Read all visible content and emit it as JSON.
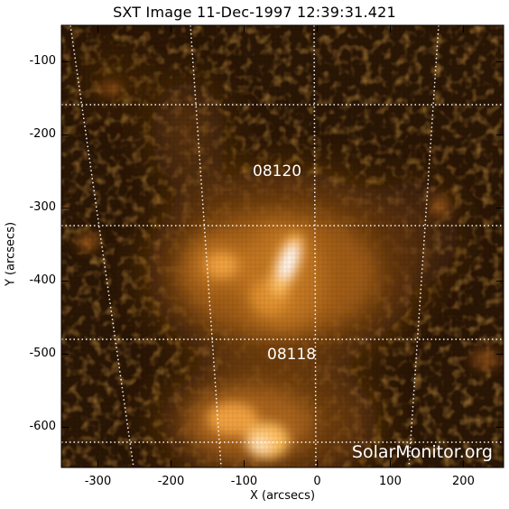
{
  "title": "SXT Image 11-Dec-1997 12:39:31.421",
  "x_axis": {
    "label": "X (arcsecs)",
    "range": [
      -350,
      255
    ],
    "ticks": [
      {
        "value": -300,
        "label": "-300"
      },
      {
        "value": -200,
        "label": "-200"
      },
      {
        "value": -100,
        "label": "-100"
      },
      {
        "value": 0,
        "label": "0"
      },
      {
        "value": 100,
        "label": "100"
      },
      {
        "value": 200,
        "label": "200"
      }
    ]
  },
  "y_axis": {
    "label": "Y (arcsecs)",
    "range": [
      -655,
      -50
    ],
    "ticks": [
      {
        "value": -100,
        "label": "-100"
      },
      {
        "value": -200,
        "label": "-200"
      },
      {
        "value": -300,
        "label": "-300"
      },
      {
        "value": -400,
        "label": "-400"
      },
      {
        "value": -500,
        "label": "-500"
      },
      {
        "value": -600,
        "label": "-600"
      }
    ]
  },
  "active_regions": [
    {
      "name": "08120"
    },
    {
      "name": "08118"
    }
  ],
  "watermark": "SolarMonitor.org",
  "colors": {
    "background": "#2a1605",
    "emission": "#d08020",
    "core": "#ffffff",
    "grid": "#ffffff"
  }
}
